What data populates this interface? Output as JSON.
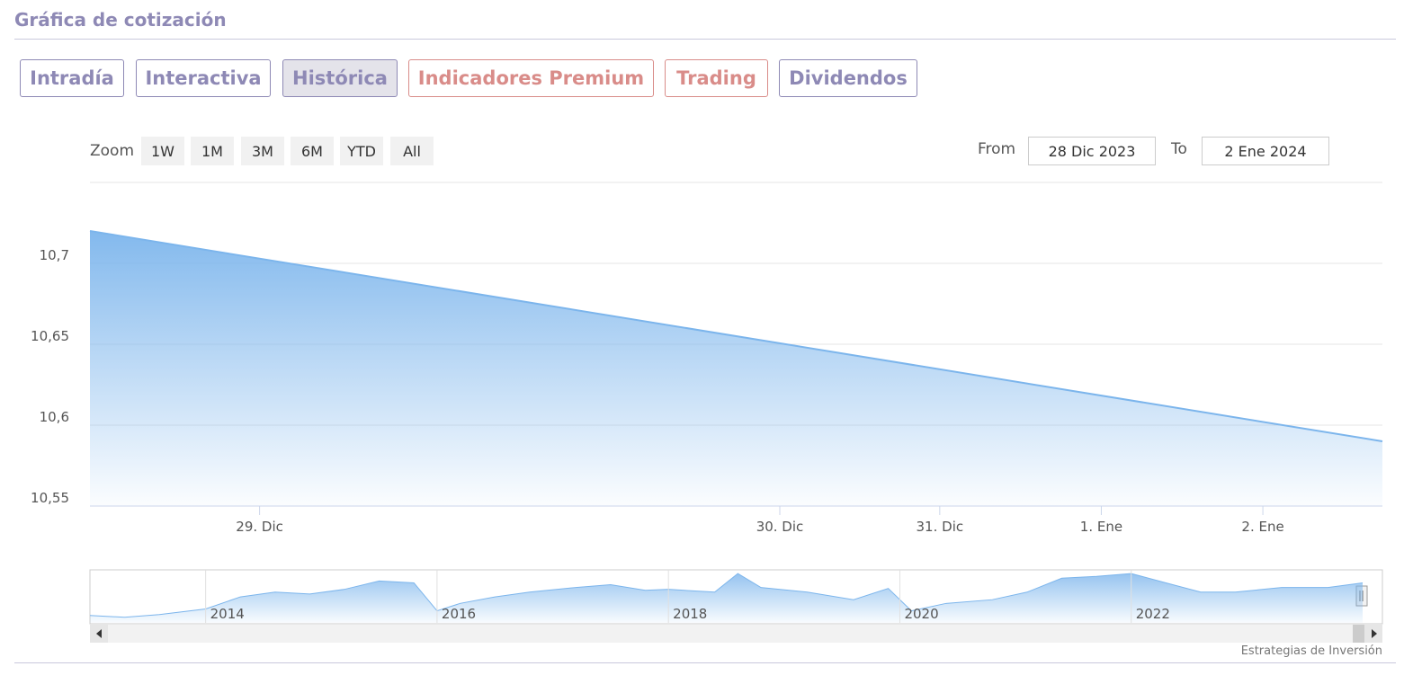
{
  "header": {
    "title": "Gráfica de cotización"
  },
  "tabs": [
    "Intradía",
    "Interactiva",
    "Histórica",
    "Indicadores Premium",
    "Trading",
    "Dividendos"
  ],
  "range_selector": {
    "zoom_label": "Zoom",
    "buttons": [
      "1W",
      "1M",
      "3M",
      "6M",
      "YTD",
      "All"
    ],
    "from_label": "From",
    "from": "28 Dic 2023",
    "to_label": "To",
    "to": "2 Ene 2024"
  },
  "chart_data": [
    {
      "type": "area",
      "color": "#7cb5ec",
      "x": [
        0,
        8
      ],
      "values": [
        10.72,
        10.59
      ],
      "xlim": [
        0,
        8
      ],
      "ylim": [
        10.55,
        10.75
      ],
      "xticks": [
        {
          "value": 1.05,
          "label": "29. Dic"
        },
        {
          "value": 4.27,
          "label": "30. Dic"
        },
        {
          "value": 5.26,
          "label": "31. Dic"
        },
        {
          "value": 6.26,
          "label": "1. Ene"
        },
        {
          "value": 7.26,
          "label": "2. Ene"
        }
      ],
      "yticks": [
        {
          "value": 10.55,
          "label": "10,55"
        },
        {
          "value": 10.6,
          "label": "10,6"
        },
        {
          "value": 10.65,
          "label": "10,65"
        },
        {
          "value": 10.7,
          "label": "10,7"
        }
      ],
      "grid": true
    },
    {
      "type": "area",
      "color": "#7cb5ec",
      "x": [
        2013.0,
        2013.3,
        2013.6,
        2014.0,
        2014.3,
        2014.6,
        2014.9,
        2015.2,
        2015.5,
        2015.8,
        2016.0,
        2016.2,
        2016.5,
        2016.8,
        2017.2,
        2017.5,
        2017.8,
        2018.0,
        2018.4,
        2018.6,
        2018.8,
        2019.2,
        2019.6,
        2019.9,
        2020.1,
        2020.4,
        2020.8,
        2021.1,
        2021.4,
        2021.7,
        2022.0,
        2022.3,
        2022.6,
        2022.9,
        2023.3,
        2023.7,
        2024.0
      ],
      "values": [
        9.06,
        8.92,
        9.13,
        9.55,
        10.46,
        10.82,
        10.68,
        11.03,
        11.66,
        11.52,
        9.41,
        9.97,
        10.46,
        10.82,
        11.17,
        11.38,
        10.96,
        11.03,
        10.82,
        12.22,
        11.17,
        10.82,
        10.25,
        11.1,
        9.41,
        9.97,
        10.25,
        10.82,
        11.87,
        12.01,
        12.22,
        11.52,
        10.82,
        10.82,
        11.17,
        11.17,
        11.52
      ],
      "xlim": [
        2013,
        2024
      ],
      "ylim": [
        8.5,
        12.5
      ],
      "xticks": [
        2014,
        2016,
        2018,
        2020,
        2022
      ],
      "grid": true
    }
  ],
  "credit": "Estrategias de Inversión"
}
